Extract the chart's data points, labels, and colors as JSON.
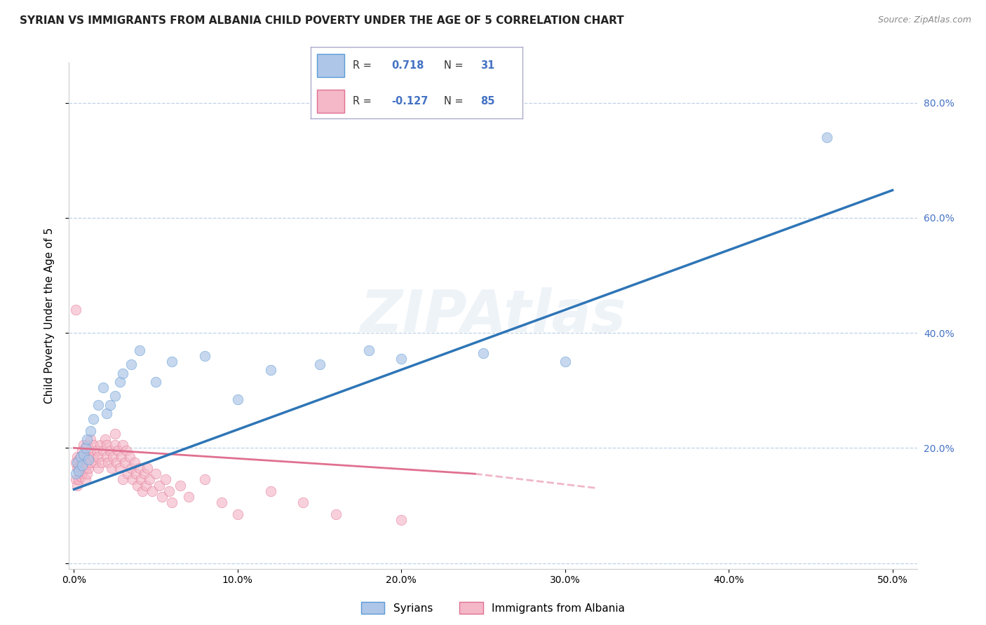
{
  "title": "SYRIAN VS IMMIGRANTS FROM ALBANIA CHILD POVERTY UNDER THE AGE OF 5 CORRELATION CHART",
  "source": "Source: ZipAtlas.com",
  "ylabel": "Child Poverty Under the Age of 5",
  "xlim": [
    -0.003,
    0.515
  ],
  "ylim": [
    -0.01,
    0.87
  ],
  "xticks": [
    0.0,
    0.1,
    0.2,
    0.3,
    0.4,
    0.5
  ],
  "xtick_labels": [
    "0.0%",
    "10.0%",
    "20.0%",
    "30.0%",
    "40.0%",
    "50.0%"
  ],
  "ytick_labels": [
    "",
    "20.0%",
    "40.0%",
    "60.0%",
    "80.0%"
  ],
  "yticks": [
    0.0,
    0.2,
    0.4,
    0.6,
    0.8
  ],
  "watermark": "ZIPAtlas",
  "right_tick_color": "#4472c4",
  "syrians": {
    "name": "Syrians",
    "color": "#aec6e8",
    "edge_color": "#5b9bd5",
    "alpha": 0.7,
    "x": [
      0.001,
      0.002,
      0.003,
      0.004,
      0.005,
      0.006,
      0.007,
      0.008,
      0.009,
      0.01,
      0.012,
      0.015,
      0.018,
      0.02,
      0.022,
      0.025,
      0.028,
      0.03,
      0.035,
      0.04,
      0.05,
      0.06,
      0.08,
      0.1,
      0.12,
      0.15,
      0.18,
      0.2,
      0.25,
      0.3,
      0.46
    ],
    "y": [
      0.155,
      0.175,
      0.16,
      0.185,
      0.17,
      0.19,
      0.2,
      0.215,
      0.18,
      0.23,
      0.25,
      0.275,
      0.305,
      0.26,
      0.275,
      0.29,
      0.315,
      0.33,
      0.345,
      0.37,
      0.315,
      0.35,
      0.36,
      0.285,
      0.335,
      0.345,
      0.37,
      0.355,
      0.365,
      0.35,
      0.74
    ],
    "trend_x0": 0.0,
    "trend_x1": 0.5,
    "trend_y0": 0.128,
    "trend_y1": 0.648,
    "trend_color": "#2e75b6",
    "trend_style": "-",
    "trend_linewidth": 2.5
  },
  "albania": {
    "name": "Immigrants from Albania",
    "color": "#f4b8c8",
    "edge_color": "#e07090",
    "alpha": 0.65,
    "x": [
      0.001,
      0.001,
      0.001,
      0.002,
      0.002,
      0.002,
      0.003,
      0.003,
      0.003,
      0.004,
      0.004,
      0.004,
      0.005,
      0.005,
      0.005,
      0.006,
      0.006,
      0.006,
      0.007,
      0.007,
      0.007,
      0.008,
      0.008,
      0.008,
      0.009,
      0.009,
      0.01,
      0.01,
      0.01,
      0.012,
      0.012,
      0.013,
      0.014,
      0.015,
      0.015,
      0.016,
      0.017,
      0.018,
      0.019,
      0.02,
      0.02,
      0.021,
      0.022,
      0.023,
      0.024,
      0.025,
      0.025,
      0.026,
      0.027,
      0.028,
      0.029,
      0.03,
      0.03,
      0.031,
      0.032,
      0.033,
      0.034,
      0.035,
      0.036,
      0.037,
      0.038,
      0.039,
      0.04,
      0.041,
      0.042,
      0.043,
      0.044,
      0.045,
      0.046,
      0.048,
      0.05,
      0.052,
      0.054,
      0.056,
      0.058,
      0.06,
      0.065,
      0.07,
      0.08,
      0.09,
      0.1,
      0.12,
      0.14,
      0.16,
      0.2
    ],
    "y": [
      0.44,
      0.145,
      0.175,
      0.135,
      0.165,
      0.185,
      0.145,
      0.165,
      0.18,
      0.15,
      0.185,
      0.165,
      0.155,
      0.175,
      0.195,
      0.165,
      0.185,
      0.205,
      0.175,
      0.145,
      0.165,
      0.155,
      0.185,
      0.205,
      0.165,
      0.185,
      0.175,
      0.195,
      0.215,
      0.185,
      0.205,
      0.175,
      0.195,
      0.165,
      0.185,
      0.205,
      0.175,
      0.195,
      0.215,
      0.185,
      0.205,
      0.175,
      0.195,
      0.165,
      0.185,
      0.205,
      0.225,
      0.175,
      0.195,
      0.165,
      0.185,
      0.205,
      0.145,
      0.175,
      0.195,
      0.155,
      0.185,
      0.165,
      0.145,
      0.175,
      0.155,
      0.135,
      0.165,
      0.145,
      0.125,
      0.155,
      0.135,
      0.165,
      0.145,
      0.125,
      0.155,
      0.135,
      0.115,
      0.145,
      0.125,
      0.105,
      0.135,
      0.115,
      0.145,
      0.105,
      0.085,
      0.125,
      0.105,
      0.085,
      0.075
    ],
    "trend_x0": 0.0,
    "trend_x1": 0.245,
    "trend_y0": 0.2,
    "trend_y1": 0.155,
    "trend_ext_x1": 0.32,
    "trend_ext_y1": 0.13,
    "trend_color": "#e07090",
    "trend_style": "-",
    "trend_dash_style": "--",
    "trend_linewidth": 2.0
  },
  "background_color": "#ffffff",
  "grid_color": "#b8cce4",
  "title_fontsize": 11,
  "axis_label_fontsize": 11,
  "tick_fontsize": 10,
  "legend_fontsize": 11,
  "watermark_color": "#c5d5e8",
  "watermark_fontsize": 60,
  "watermark_alpha": 0.28
}
